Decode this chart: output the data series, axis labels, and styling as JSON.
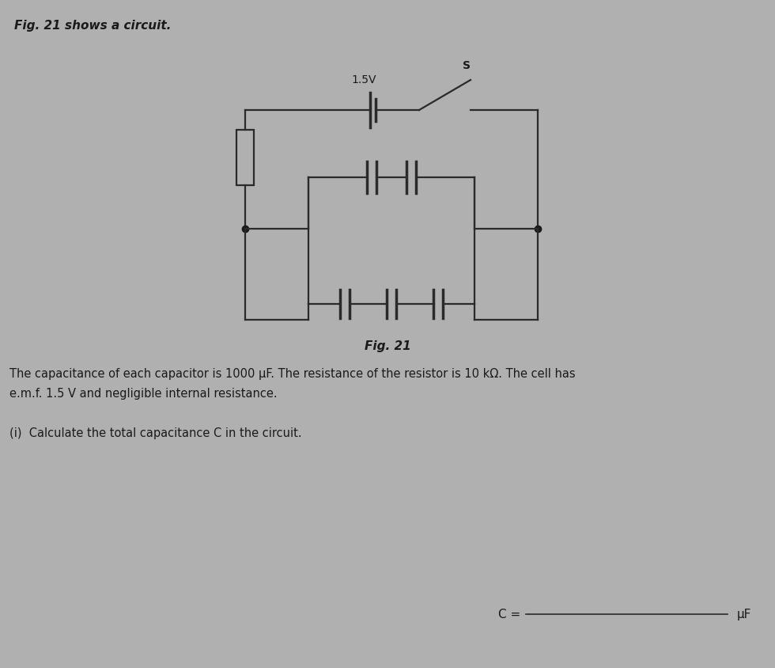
{
  "background_color": "#b0b0b0",
  "title_text": "Fig. 21 shows a circuit.",
  "body_text_line1": "The capacitance of each capacitor is 1000 μF. The resistance of the resistor is 10 kΩ. The cell has",
  "body_text_line2": "e.m.f. 1.5 V and negligible internal resistance.",
  "question_text": "(i)  Calculate the total capacitance C in the circuit.",
  "answer_label": "C =",
  "answer_unit": "μF",
  "fig_label": "Fig. 21",
  "voltage_label": "1.5V",
  "switch_label": "S",
  "line_color": "#2a2a2a",
  "line_width": 1.6,
  "dot_color": "#1a1a1a",
  "text_color": "#1a1a1a"
}
